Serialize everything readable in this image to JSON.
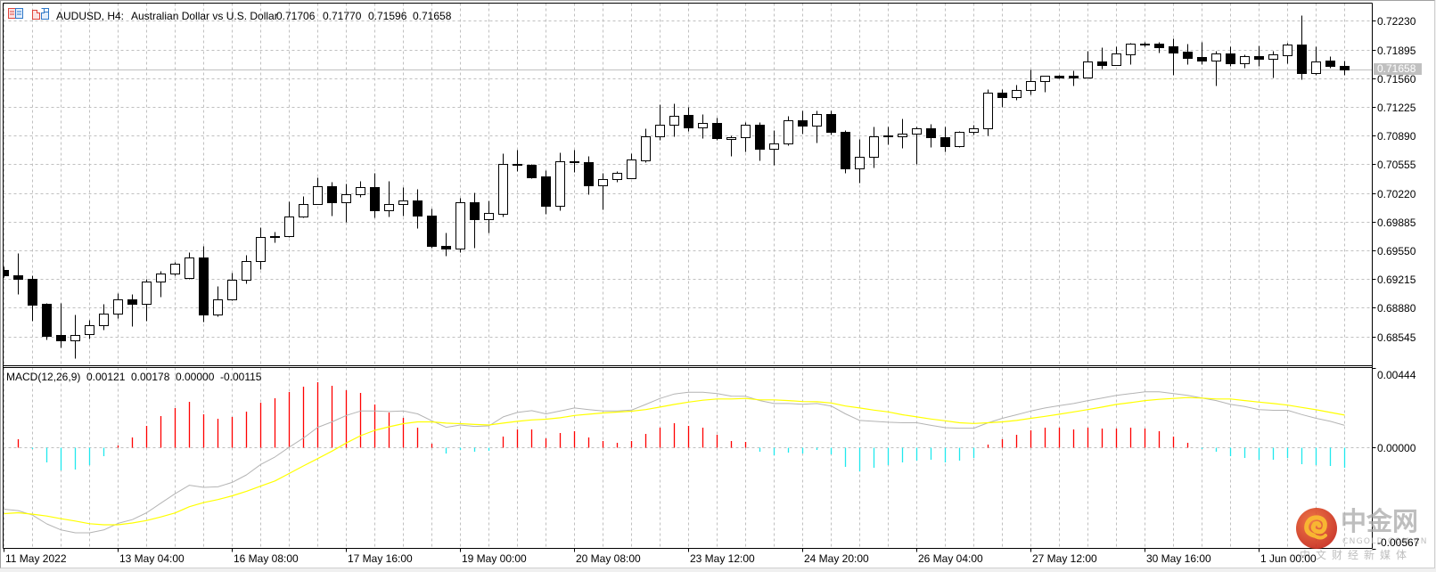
{
  "header": {
    "symbol_timeframe": "AUDUSD, H4:",
    "description": "Australian Dollar vs U.S. Dollar",
    "ohlc": [
      "0.71706",
      "0.71770",
      "0.71596",
      "0.71658"
    ],
    "icons": [
      "chart-window-list-icon",
      "chart-template-icon"
    ]
  },
  "macd_header": {
    "name": "MACD(12,26,9)",
    "values": [
      "0.00121",
      "0.00178",
      "0.00000",
      "-0.00115"
    ]
  },
  "watermark": {
    "brand": "中金网",
    "domain": "CNGOLD.COM.CN",
    "tagline": "中文财经新媒体"
  },
  "colors": {
    "background": "#ffffff",
    "frame": "#f0f0f0",
    "axis": "#000000",
    "grid": "#c0c0c0",
    "bull_candle_fill": "#ffffff",
    "bear_candle_fill": "#000000",
    "candle_outline": "#000000",
    "bid_line": "#c0c0c0",
    "bid_label_bg": "#c0c0c0",
    "bid_label_text": "#ffffff",
    "macd_line": "#b4b4b4",
    "signal_line": "#ffff00",
    "hist_positive": "#ff0000",
    "hist_negative": "#20e8ee"
  },
  "chart_data": [
    {
      "id": "price",
      "type": "candlestick",
      "title": "AUDUSD, H4: Australian Dollar vs U.S. Dollar",
      "fields": [
        "open",
        "high",
        "low",
        "close"
      ],
      "ylim": [
        0.68202,
        0.72436
      ],
      "yticks": [
        0.7223,
        0.71895,
        0.7156,
        0.71225,
        0.7089,
        0.70555,
        0.7022,
        0.69885,
        0.6955,
        0.69215,
        0.6888,
        0.68545
      ],
      "ytick_labels": [
        "0.72230",
        "0.71895",
        "0.71560",
        "0.71225",
        "0.70890",
        "0.70555",
        "0.70220",
        "0.69885",
        "0.69550",
        "0.69215",
        "0.68880",
        "0.68545"
      ],
      "xtick_labels": [
        {
          "bar": 0,
          "text": "11 May 2022"
        },
        {
          "bar": 8,
          "text": "13 May 04:00"
        },
        {
          "bar": 16,
          "text": "16 May 08:00"
        },
        {
          "bar": 24,
          "text": "17 May 16:00"
        },
        {
          "bar": 32,
          "text": "19 May 00:00"
        },
        {
          "bar": 40,
          "text": "20 May 08:00"
        },
        {
          "bar": 48,
          "text": "23 May 12:00"
        },
        {
          "bar": 56,
          "text": "24 May 20:00"
        },
        {
          "bar": 64,
          "text": "26 May 04:00"
        },
        {
          "bar": 72,
          "text": "27 May 12:00"
        },
        {
          "bar": 80,
          "text": "30 May 16:00"
        },
        {
          "bar": 88,
          "text": "1 Jun 00:00"
        }
      ],
      "last_price": 0.71658,
      "last_price_label": "0.71658",
      "grid": true,
      "candles": [
        [
          0.69322,
          0.69357,
          0.69232,
          0.6926
        ],
        [
          0.69263,
          0.69523,
          0.69038,
          0.69219
        ],
        [
          0.69219,
          0.69253,
          0.68726,
          0.68913
        ],
        [
          0.68921,
          0.68931,
          0.68508,
          0.6855
        ],
        [
          0.68557,
          0.68931,
          0.68412,
          0.68498
        ],
        [
          0.68502,
          0.68796,
          0.68287,
          0.68564
        ],
        [
          0.68575,
          0.68734,
          0.68519,
          0.68679
        ],
        [
          0.68679,
          0.68921,
          0.68619,
          0.68814
        ],
        [
          0.68814,
          0.69045,
          0.68758,
          0.6898
        ],
        [
          0.6898,
          0.69035,
          0.68664,
          0.68924
        ],
        [
          0.68928,
          0.69219,
          0.68726,
          0.69187
        ],
        [
          0.69183,
          0.69315,
          0.69004,
          0.69281
        ],
        [
          0.69281,
          0.69409,
          0.69253,
          0.69395
        ],
        [
          0.69225,
          0.6953,
          0.69219,
          0.69468
        ],
        [
          0.69471,
          0.69599,
          0.68716,
          0.68799
        ],
        [
          0.68803,
          0.69128,
          0.68778,
          0.6898
        ],
        [
          0.68976,
          0.69294,
          0.6897,
          0.69208
        ],
        [
          0.69208,
          0.69502,
          0.69163,
          0.69426
        ],
        [
          0.69426,
          0.69824,
          0.69329,
          0.6971
        ],
        [
          0.69717,
          0.69772,
          0.6964,
          0.69702
        ],
        [
          0.69717,
          0.70118,
          0.6971,
          0.69946
        ],
        [
          0.69946,
          0.70187,
          0.69931,
          0.70091
        ],
        [
          0.70091,
          0.70402,
          0.70085,
          0.70299
        ],
        [
          0.70299,
          0.70354,
          0.69952,
          0.70112
        ],
        [
          0.70112,
          0.70333,
          0.69886,
          0.70205
        ],
        [
          0.70205,
          0.70361,
          0.7017,
          0.70284
        ],
        [
          0.70288,
          0.70457,
          0.69938,
          0.70014
        ],
        [
          0.70018,
          0.70361,
          0.69941,
          0.70091
        ],
        [
          0.70091,
          0.70291,
          0.69952,
          0.70132
        ],
        [
          0.70132,
          0.70267,
          0.69806,
          0.69952
        ],
        [
          0.69956,
          0.70042,
          0.69582,
          0.69599
        ],
        [
          0.69603,
          0.69762,
          0.69484,
          0.69572
        ],
        [
          0.69572,
          0.70167,
          0.6953,
          0.70107
        ],
        [
          0.70112,
          0.70222,
          0.69582,
          0.6991
        ],
        [
          0.6991,
          0.70132,
          0.69754,
          0.69987
        ],
        [
          0.6998,
          0.70686,
          0.69946,
          0.70558
        ],
        [
          0.70558,
          0.70724,
          0.70471,
          0.70544
        ],
        [
          0.70551,
          0.70559,
          0.70395,
          0.70402
        ],
        [
          0.70413,
          0.70481,
          0.6998,
          0.70066
        ],
        [
          0.70073,
          0.70696,
          0.70014,
          0.70592
        ],
        [
          0.70592,
          0.70724,
          0.70465,
          0.70579
        ],
        [
          0.70582,
          0.70655,
          0.70205,
          0.70309
        ],
        [
          0.70309,
          0.70457,
          0.70032,
          0.70385
        ],
        [
          0.70382,
          0.70478,
          0.7035,
          0.70454
        ],
        [
          0.70395,
          0.70683,
          0.70388,
          0.7061
        ],
        [
          0.706,
          0.70977,
          0.70579,
          0.7088
        ],
        [
          0.7088,
          0.7126,
          0.70839,
          0.71015
        ],
        [
          0.71015,
          0.71267,
          0.7088,
          0.71119
        ],
        [
          0.71129,
          0.71226,
          0.70942,
          0.70984
        ],
        [
          0.70984,
          0.7114,
          0.70862,
          0.71036
        ],
        [
          0.71036,
          0.71104,
          0.70839,
          0.70859
        ],
        [
          0.70849,
          0.7089,
          0.70647,
          0.70873
        ],
        [
          0.7087,
          0.71052,
          0.70699,
          0.71015
        ],
        [
          0.71018,
          0.71052,
          0.70603,
          0.70731
        ],
        [
          0.70735,
          0.70956,
          0.70551,
          0.70797
        ],
        [
          0.70793,
          0.71122,
          0.70776,
          0.7107
        ],
        [
          0.7107,
          0.71184,
          0.70914,
          0.71001
        ],
        [
          0.71001,
          0.71184,
          0.7081,
          0.7114
        ],
        [
          0.7114,
          0.71184,
          0.70897,
          0.70928
        ],
        [
          0.70932,
          0.70956,
          0.70457,
          0.70502
        ],
        [
          0.70502,
          0.70852,
          0.70343,
          0.70641
        ],
        [
          0.70637,
          0.7099,
          0.7052,
          0.7088
        ],
        [
          0.70894,
          0.7099,
          0.7079,
          0.70876
        ],
        [
          0.70876,
          0.71094,
          0.70741,
          0.70911
        ],
        [
          0.70907,
          0.7099,
          0.70561,
          0.70977
        ],
        [
          0.70977,
          0.71029,
          0.70759,
          0.70866
        ],
        [
          0.70873,
          0.7099,
          0.70699,
          0.70762
        ],
        [
          0.70766,
          0.70945,
          0.7076,
          0.70932
        ],
        [
          0.70928,
          0.71018,
          0.70897,
          0.70977
        ],
        [
          0.70974,
          0.71434,
          0.70886,
          0.71389
        ],
        [
          0.71389,
          0.71434,
          0.71226,
          0.71337
        ],
        [
          0.71337,
          0.71482,
          0.71312,
          0.71423
        ],
        [
          0.71423,
          0.71659,
          0.71374,
          0.71527
        ],
        [
          0.71524,
          0.71589,
          0.71399,
          0.71586
        ],
        [
          0.71589,
          0.716,
          0.71555,
          0.71569
        ],
        [
          0.71589,
          0.71648,
          0.71478,
          0.71569
        ],
        [
          0.71572,
          0.71877,
          0.71565,
          0.71752
        ],
        [
          0.71755,
          0.71918,
          0.71675,
          0.71717
        ],
        [
          0.71717,
          0.71929,
          0.71711,
          0.71846
        ],
        [
          0.71842,
          0.71977,
          0.71721,
          0.7196
        ],
        [
          0.71958,
          0.71981,
          0.71935,
          0.71962
        ],
        [
          0.7196,
          0.71984,
          0.71859,
          0.71925
        ],
        [
          0.71932,
          0.72029,
          0.716,
          0.71862
        ],
        [
          0.71867,
          0.71963,
          0.71727,
          0.718
        ],
        [
          0.71807,
          0.71987,
          0.71727,
          0.71769
        ],
        [
          0.71769,
          0.71883,
          0.71475,
          0.71846
        ],
        [
          0.71846,
          0.71929,
          0.717,
          0.71738
        ],
        [
          0.71738,
          0.71839,
          0.71683,
          0.71818
        ],
        [
          0.71821,
          0.71942,
          0.71707,
          0.7179
        ],
        [
          0.7179,
          0.7188,
          0.71572,
          0.71839
        ],
        [
          0.71831,
          0.71977,
          0.71735,
          0.7195
        ],
        [
          0.7195,
          0.72299,
          0.71545,
          0.71617
        ],
        [
          0.71617,
          0.71929,
          0.716,
          0.71752
        ],
        [
          0.71763,
          0.71815,
          0.71683,
          0.71704
        ],
        [
          0.71706,
          0.7177,
          0.71596,
          0.71658
        ]
      ]
    },
    {
      "id": "macd",
      "type": "bar",
      "title": "MACD(12,26,9)",
      "params": [
        12,
        26,
        9
      ],
      "ylim": [
        -0.00567,
        0.00444
      ],
      "yticks": [
        0.00444,
        0.0,
        -0.00567
      ],
      "ytick_labels": [
        "0.00444",
        "0.00000",
        "-0.00567"
      ],
      "legend_values": [
        "0.00121",
        "0.00178",
        "0.00000",
        "-0.00115"
      ],
      "series": [
        {
          "name": "MACD",
          "type": "line",
          "values": [
            -0.00348,
            -0.00356,
            -0.00381,
            -0.0043,
            -0.00464,
            -0.0048,
            -0.0048,
            -0.00464,
            -0.00427,
            -0.00406,
            -0.00368,
            -0.00314,
            -0.00261,
            -0.00214,
            -0.00226,
            -0.00223,
            -0.00198,
            -0.00156,
            -0.00098,
            -0.00056,
            -1e-05,
            0.0005,
            0.0011,
            0.0014,
            0.00176,
            0.00201,
            0.00201,
            0.00198,
            0.00201,
            0.00185,
            0.00146,
            0.0011,
            0.00123,
            0.00115,
            0.00118,
            0.00168,
            0.00193,
            0.00203,
            0.00185,
            0.00201,
            0.00218,
            0.00209,
            0.00201,
            0.00201,
            0.00206,
            0.00238,
            0.00271,
            0.00296,
            0.00306,
            0.00306,
            0.00298,
            0.00284,
            0.00283,
            0.00259,
            0.00243,
            0.00243,
            0.00239,
            0.00243,
            0.00229,
            0.00185,
            0.00148,
            0.00143,
            0.00138,
            0.00135,
            0.00135,
            0.00121,
            0.00108,
            0.00105,
            0.00105,
            0.00135,
            0.0016,
            0.0018,
            0.00201,
            0.00218,
            0.00231,
            0.00243,
            0.00259,
            0.00273,
            0.00288,
            0.00298,
            0.00308,
            0.00308,
            0.00298,
            0.00288,
            0.00273,
            0.00259,
            0.00238,
            0.00226,
            0.00209,
            0.00205,
            0.00205,
            0.00181,
            0.0016,
            0.00143,
            0.00121
          ]
        },
        {
          "name": "Signal",
          "type": "line",
          "values": [
            -0.00373,
            -0.00368,
            -0.00376,
            -0.00386,
            -0.00401,
            -0.00414,
            -0.00429,
            -0.00435,
            -0.00435,
            -0.00425,
            -0.00411,
            -0.00391,
            -0.00369,
            -0.00334,
            -0.00311,
            -0.00294,
            -0.00273,
            -0.00248,
            -0.00219,
            -0.0019,
            -0.00148,
            -0.00106,
            -0.00065,
            -0.00023,
            0.00022,
            0.00063,
            0.00093,
            0.00113,
            0.0013,
            0.0014,
            0.0014,
            0.00133,
            0.0013,
            0.00126,
            0.00123,
            0.00133,
            0.00143,
            0.00151,
            0.00155,
            0.00163,
            0.00176,
            0.00183,
            0.0019,
            0.00195,
            0.002,
            0.00209,
            0.00223,
            0.00238,
            0.00251,
            0.00261,
            0.00268,
            0.00268,
            0.00271,
            0.00263,
            0.00263,
            0.00259,
            0.00254,
            0.00253,
            0.00246,
            0.00229,
            0.00218,
            0.00206,
            0.00196,
            0.0018,
            0.00168,
            0.00156,
            0.00146,
            0.00135,
            0.00131,
            0.00135,
            0.0014,
            0.00148,
            0.0016,
            0.00171,
            0.00183,
            0.00196,
            0.00209,
            0.00223,
            0.00238,
            0.00248,
            0.00259,
            0.00266,
            0.00271,
            0.00276,
            0.00273,
            0.00268,
            0.00268,
            0.00259,
            0.00251,
            0.00243,
            0.00234,
            0.00221,
            0.00208,
            0.00193,
            0.00178
          ]
        },
        {
          "name": "Histogram",
          "type": "bar",
          "values": [
            0.0,
            0.00041,
            -0.00013,
            -0.00086,
            -0.0013,
            -0.00126,
            -0.00101,
            -0.00051,
            0.0001,
            0.00053,
            0.00116,
            0.00173,
            0.00216,
            0.00251,
            0.00181,
            0.00156,
            0.00166,
            0.00196,
            0.00246,
            0.00273,
            0.00306,
            0.00336,
            0.00361,
            0.00341,
            0.00317,
            0.00301,
            0.00238,
            0.00191,
            0.00161,
            0.00106,
            0.00016,
            -0.00038,
            -0.00018,
            -0.00026,
            -0.00021,
            0.00056,
            0.00096,
            0.00096,
            0.00046,
            0.00076,
            0.00086,
            0.00051,
            0.00031,
            0.00021,
            0.00031,
            0.00071,
            0.00106,
            0.00131,
            0.00116,
            0.00106,
            0.00066,
            0.00031,
            0.00026,
            -0.00025,
            -0.00045,
            -0.00031,
            -0.00038,
            -0.00018,
            -0.00041,
            -0.00113,
            -0.00138,
            -0.00118,
            -0.00101,
            -0.00088,
            -0.00075,
            -0.00071,
            -0.00088,
            -0.00075,
            -0.00063,
            0.00011,
            0.00041,
            0.00066,
            0.00091,
            0.00106,
            0.00106,
            0.00096,
            0.00106,
            0.00101,
            0.00101,
            0.00106,
            0.00101,
            0.00086,
            0.00058,
            0.00021,
            -0.00013,
            -0.00026,
            -0.0005,
            -0.0006,
            -0.00071,
            -0.00071,
            -0.00063,
            -0.00096,
            -0.001,
            -0.00105,
            -0.00115
          ]
        }
      ]
    }
  ]
}
